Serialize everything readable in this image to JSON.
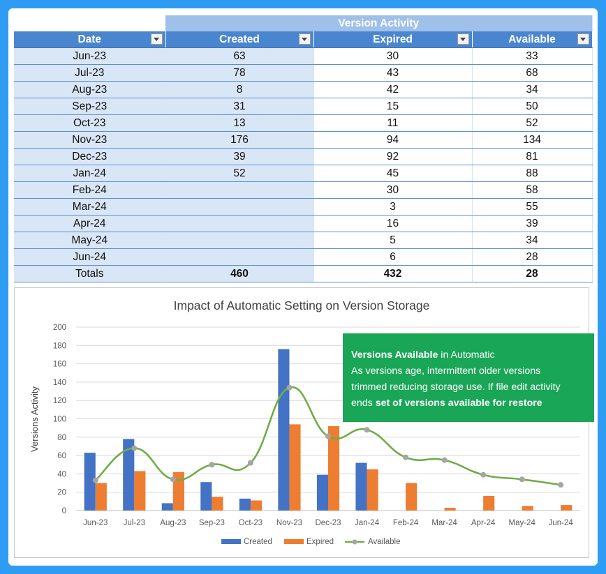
{
  "table": {
    "group_header": "Version Activity",
    "columns": [
      "Date",
      "Created",
      "Expired",
      "Available"
    ],
    "rows": [
      {
        "date": "Jun-23",
        "created": "63",
        "expired": "30",
        "available": "33"
      },
      {
        "date": "Jul-23",
        "created": "78",
        "expired": "43",
        "available": "68"
      },
      {
        "date": "Aug-23",
        "created": "8",
        "expired": "42",
        "available": "34"
      },
      {
        "date": "Sep-23",
        "created": "31",
        "expired": "15",
        "available": "50"
      },
      {
        "date": "Oct-23",
        "created": "13",
        "expired": "11",
        "available": "52"
      },
      {
        "date": "Nov-23",
        "created": "176",
        "expired": "94",
        "available": "134"
      },
      {
        "date": "Dec-23",
        "created": "39",
        "expired": "92",
        "available": "81"
      },
      {
        "date": "Jan-24",
        "created": "52",
        "expired": "45",
        "available": "88"
      },
      {
        "date": "Feb-24",
        "created": "",
        "expired": "30",
        "available": "58"
      },
      {
        "date": "Mar-24",
        "created": "",
        "expired": "3",
        "available": "55"
      },
      {
        "date": "Apr-24",
        "created": "",
        "expired": "16",
        "available": "39"
      },
      {
        "date": "May-24",
        "created": "",
        "expired": "5",
        "available": "34"
      },
      {
        "date": "Jun-24",
        "created": "",
        "expired": "6",
        "available": "28"
      }
    ],
    "totals": {
      "label": "Totals",
      "created": "460",
      "expired": "432",
      "available": "28"
    }
  },
  "callout": {
    "title_bold": "Versions Available",
    "title_rest": " in Automatic",
    "line2": "As versions age, intermittent  older versions",
    "line3": "trimmed reducing storage use. If file edit activity",
    "line4_rest": "ends ",
    "line4_bold": "set of versions available for restore"
  },
  "colors": {
    "created": "#4472c4",
    "expired": "#ed7d31",
    "available": "#70ad47",
    "callout_bg": "#1aa657",
    "header_bg": "#4a86cf"
  },
  "chart_data": {
    "type": "bar",
    "title": "Impact of Automatic Setting on Version Storage",
    "xlabel": "",
    "ylabel": "Versions Activity",
    "ylim": [
      0,
      200
    ],
    "yticks": [
      0,
      20,
      40,
      60,
      80,
      100,
      120,
      140,
      160,
      180,
      200
    ],
    "grid": true,
    "legend_position": "bottom",
    "categories": [
      "Jun-23",
      "Jul-23",
      "Aug-23",
      "Sep-23",
      "Oct-23",
      "Nov-23",
      "Dec-23",
      "Jan-24",
      "Feb-24",
      "Mar-24",
      "Apr-24",
      "May-24",
      "Jun-24"
    ],
    "series": [
      {
        "name": "Created",
        "type": "bar",
        "values": [
          63,
          78,
          8,
          31,
          13,
          176,
          39,
          52,
          null,
          null,
          null,
          null,
          null
        ]
      },
      {
        "name": "Expired",
        "type": "bar",
        "values": [
          30,
          43,
          42,
          15,
          11,
          94,
          92,
          45,
          30,
          3,
          16,
          5,
          6
        ]
      },
      {
        "name": "Available",
        "type": "line",
        "smooth": true,
        "values": [
          33,
          68,
          34,
          50,
          52,
          134,
          81,
          88,
          58,
          55,
          39,
          34,
          28
        ]
      }
    ]
  }
}
